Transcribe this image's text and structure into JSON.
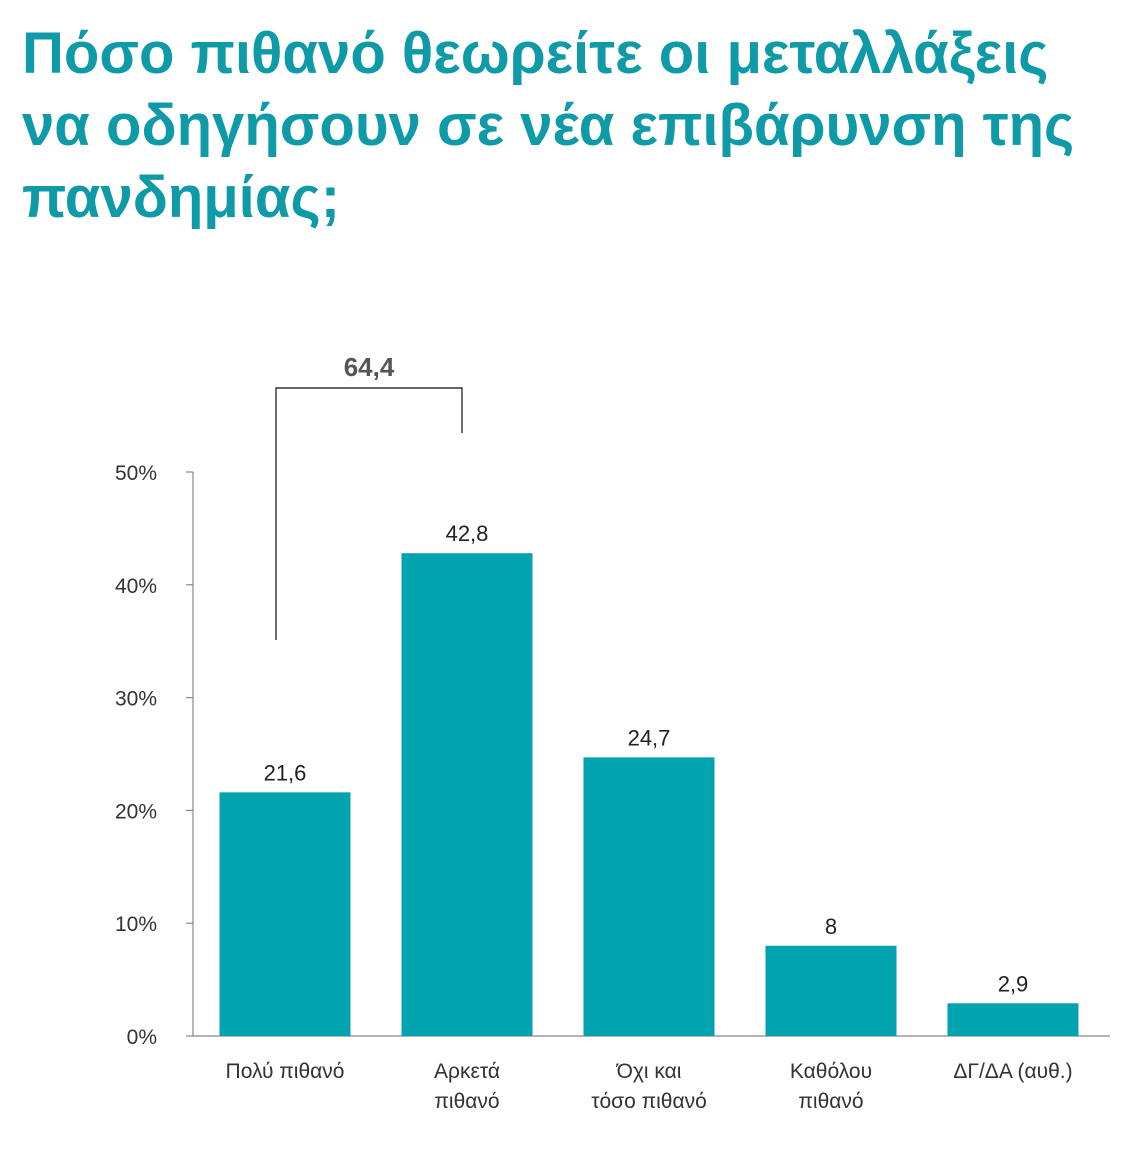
{
  "chart_data": {
    "type": "bar",
    "title": "Πόσο πιθανό θεωρείτε οι μεταλλάξεις να οδηγήσουν σε νέα επιβάρυνση της πανδημίας;",
    "xlabel": "",
    "ylabel": "",
    "ylim": [
      0,
      50
    ],
    "y_ticks": [
      "0%",
      "10%",
      "20%",
      "30%",
      "40%",
      "50%"
    ],
    "categories": [
      [
        "Πολύ πιθανό"
      ],
      [
        "Αρκετά",
        "πιθανό"
      ],
      [
        "Όχι και",
        "τόσο πιθανό"
      ],
      [
        "Καθόλου",
        "πιθανό"
      ],
      [
        "ΔΓ/ΔΑ (αυθ.)"
      ]
    ],
    "values": [
      21.6,
      42.8,
      24.7,
      8,
      2.9
    ],
    "value_labels": [
      "21,6",
      "42,8",
      "24,7",
      "8",
      "2,9"
    ],
    "bar_color": "#00a3ae",
    "grid": false,
    "legend": "none",
    "annotations": [
      {
        "type": "bracket",
        "from_category": 0,
        "to_category": 1,
        "label": "64,4"
      }
    ]
  },
  "colors": {
    "title": "#0e9aa7",
    "bar": "#00a3ae",
    "axis": "#888888"
  }
}
